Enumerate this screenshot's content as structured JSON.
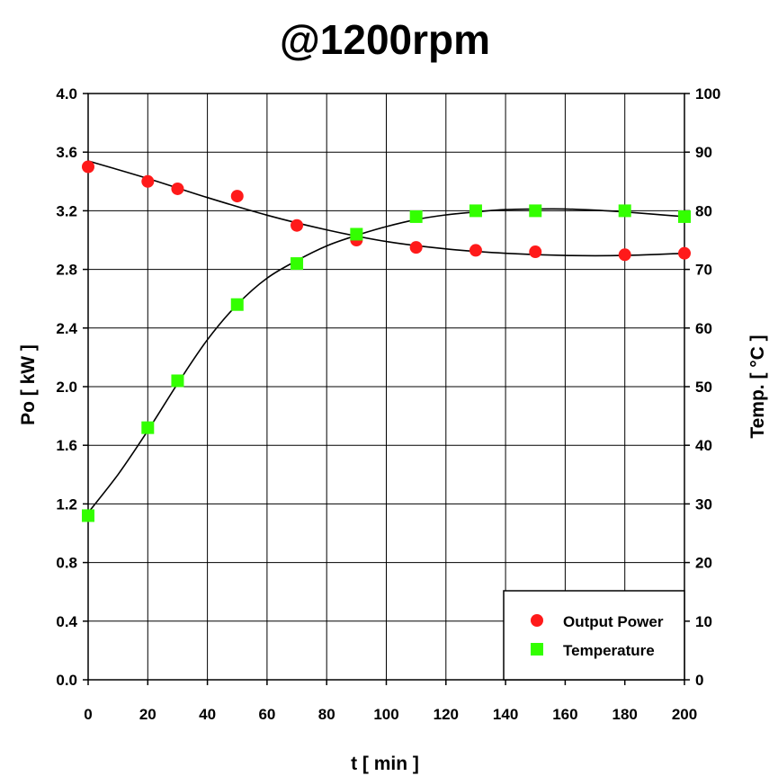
{
  "chart_data": {
    "type": "scatter",
    "title": "@1200rpm",
    "xlabel": "t [ min ]",
    "ylabel_left": "Po [ kW ]",
    "ylabel_right": "Temp. [ °C ]",
    "xlim": [
      0,
      200
    ],
    "ylim_left": [
      0.0,
      4.0
    ],
    "ylim_right": [
      0,
      100
    ],
    "x_ticks": [
      "0",
      "20",
      "40",
      "60",
      "80",
      "100",
      "120",
      "140",
      "160",
      "180",
      "200"
    ],
    "y_left_ticks": [
      "0.0",
      "0.4",
      "0.8",
      "1.2",
      "1.6",
      "2.0",
      "2.4",
      "2.8",
      "3.2",
      "3.6",
      "4.0"
    ],
    "y_right_ticks": [
      "0",
      "10",
      "20",
      "30",
      "40",
      "50",
      "60",
      "70",
      "80",
      "90",
      "100"
    ],
    "grid": true,
    "legend_position": "bottom-right",
    "series": [
      {
        "name": "Output Power",
        "axis": "left",
        "marker": "circle",
        "color": "#ff1a1a",
        "x": [
          0,
          20,
          30,
          50,
          70,
          90,
          110,
          130,
          150,
          180,
          200
        ],
        "y": [
          3.5,
          3.4,
          3.35,
          3.3,
          3.1,
          3.0,
          2.95,
          2.93,
          2.92,
          2.9,
          2.91
        ],
        "trend": [
          [
            0,
            3.54
          ],
          [
            20,
            3.42
          ],
          [
            40,
            3.29
          ],
          [
            60,
            3.17
          ],
          [
            80,
            3.07
          ],
          [
            100,
            2.99
          ],
          [
            120,
            2.94
          ],
          [
            140,
            2.91
          ],
          [
            160,
            2.895
          ],
          [
            180,
            2.895
          ],
          [
            200,
            2.91
          ]
        ]
      },
      {
        "name": "Temperature",
        "axis": "right",
        "marker": "square",
        "color": "#33ff00",
        "x": [
          0,
          20,
          30,
          50,
          70,
          90,
          110,
          130,
          150,
          180,
          200
        ],
        "y": [
          28,
          43,
          51,
          64,
          71,
          76,
          79,
          80,
          80,
          80,
          79
        ],
        "trend": [
          [
            0,
            28.5
          ],
          [
            10,
            35
          ],
          [
            20,
            42.5
          ],
          [
            30,
            50.5
          ],
          [
            40,
            58
          ],
          [
            50,
            64
          ],
          [
            60,
            68.5
          ],
          [
            70,
            71.5
          ],
          [
            80,
            74
          ],
          [
            90,
            75.8
          ],
          [
            100,
            77.3
          ],
          [
            110,
            78.5
          ],
          [
            120,
            79.3
          ],
          [
            130,
            79.8
          ],
          [
            140,
            80.2
          ],
          [
            150,
            80.3
          ],
          [
            160,
            80.3
          ],
          [
            170,
            80.1
          ],
          [
            180,
            79.8
          ],
          [
            190,
            79.4
          ],
          [
            200,
            79
          ]
        ]
      }
    ]
  }
}
